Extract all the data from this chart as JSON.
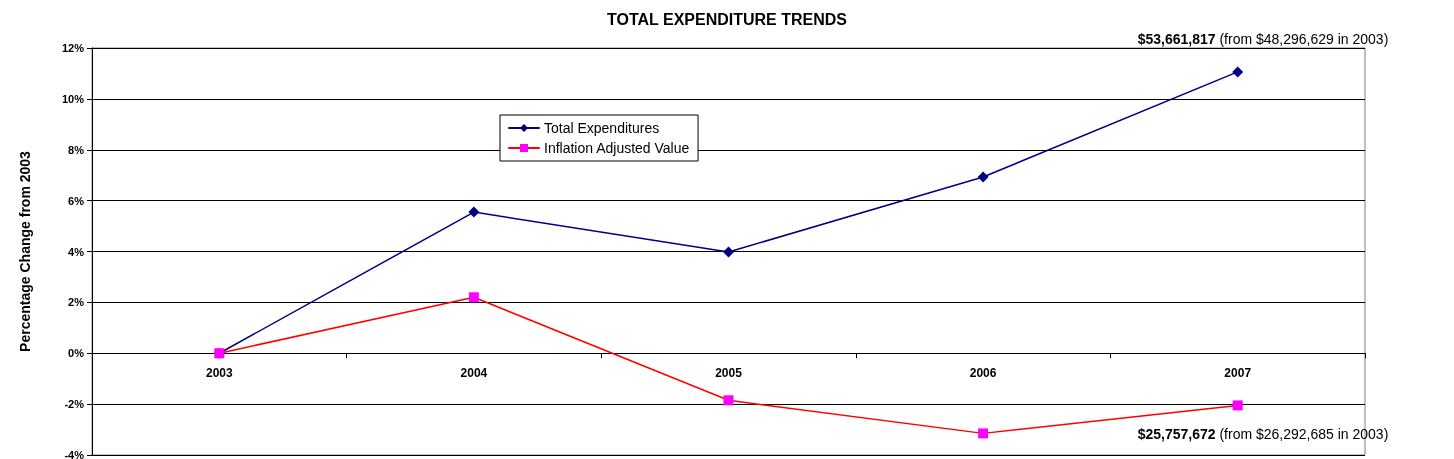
{
  "chart_data": {
    "type": "line",
    "title": "TOTAL EXPENDITURE TRENDS",
    "ylabel": "Percentage Change from 2003",
    "categories": [
      "2003",
      "2004",
      "2005",
      "2006",
      "2007"
    ],
    "series": [
      {
        "name": "Total Expenditures",
        "color": "#000080",
        "marker": "diamond",
        "values": [
          0,
          5.55,
          3.98,
          6.93,
          11.06
        ]
      },
      {
        "name": "Inflation Adjusted Value",
        "color": "#ff0000",
        "colors": [
          "#ff00ff",
          "#ff00ff",
          "#ff00ff",
          "#ff00ff",
          "#ff00ff"
        ],
        "marker": "square",
        "values": [
          0,
          2.2,
          -1.85,
          -3.15,
          -2.05
        ]
      }
    ],
    "ylim": [
      -4,
      12
    ],
    "yticks": [
      {
        "value": -4,
        "label": "-4%"
      },
      {
        "value": -2,
        "label": "-2%"
      },
      {
        "value": 0,
        "label": "0%"
      },
      {
        "value": 2,
        "label": "2%"
      },
      {
        "value": 4,
        "label": "4%"
      },
      {
        "value": 6,
        "label": "6%"
      },
      {
        "value": 8,
        "label": "8%"
      },
      {
        "value": 10,
        "label": "10%"
      },
      {
        "value": 12,
        "label": "12%"
      }
    ],
    "grid": "y",
    "legend": "top",
    "line_style": "solid",
    "annotations": [
      {
        "text": "$53,661,817 (from $48,296,629 in 2003)",
        "x": "2007",
        "y": 11.06
      },
      {
        "text": "$25,757,672 (from $26,292,685 in 2003)",
        "x": "2007",
        "y": -2.05
      }
    ]
  }
}
